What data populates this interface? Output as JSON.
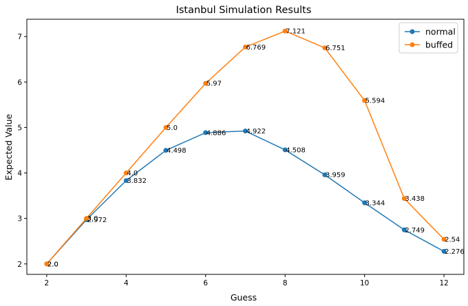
{
  "chart_data": {
    "type": "line",
    "title": "Istanbul Simulation Results",
    "xlabel": "Guess",
    "ylabel": "Expected Value",
    "x": [
      2,
      3,
      4,
      5,
      6,
      7,
      8,
      9,
      10,
      11,
      12
    ],
    "xlim": [
      1.5,
      12.5
    ],
    "ylim": [
      1.77,
      7.38
    ],
    "xticks": [
      2,
      4,
      6,
      8,
      10,
      12
    ],
    "yticks": [
      2,
      3,
      4,
      5,
      6,
      7
    ],
    "grid": false,
    "legend_position": "top-right",
    "series": [
      {
        "name": "normal",
        "color": "#1f77b4",
        "values": [
          2.0,
          2.972,
          3.832,
          4.498,
          4.886,
          4.922,
          4.508,
          3.959,
          3.344,
          2.749,
          2.276
        ],
        "labels": [
          "2.0",
          "2.972",
          "3.832",
          "4.498",
          "4.886",
          "4.922",
          "4.508",
          "3.959",
          "3.344",
          "2.749",
          "2.276"
        ]
      },
      {
        "name": "buffed",
        "color": "#ff7f0e",
        "values": [
          2.0,
          3.0,
          4.0,
          5.0,
          5.97,
          6.769,
          7.121,
          6.751,
          5.594,
          3.438,
          2.54
        ],
        "labels": [
          "2.0",
          "3.0",
          "4.0",
          "5.0",
          "5.97",
          "6.769",
          "7.121",
          "6.751",
          "5.594",
          "3.438",
          "2.54"
        ]
      }
    ]
  }
}
